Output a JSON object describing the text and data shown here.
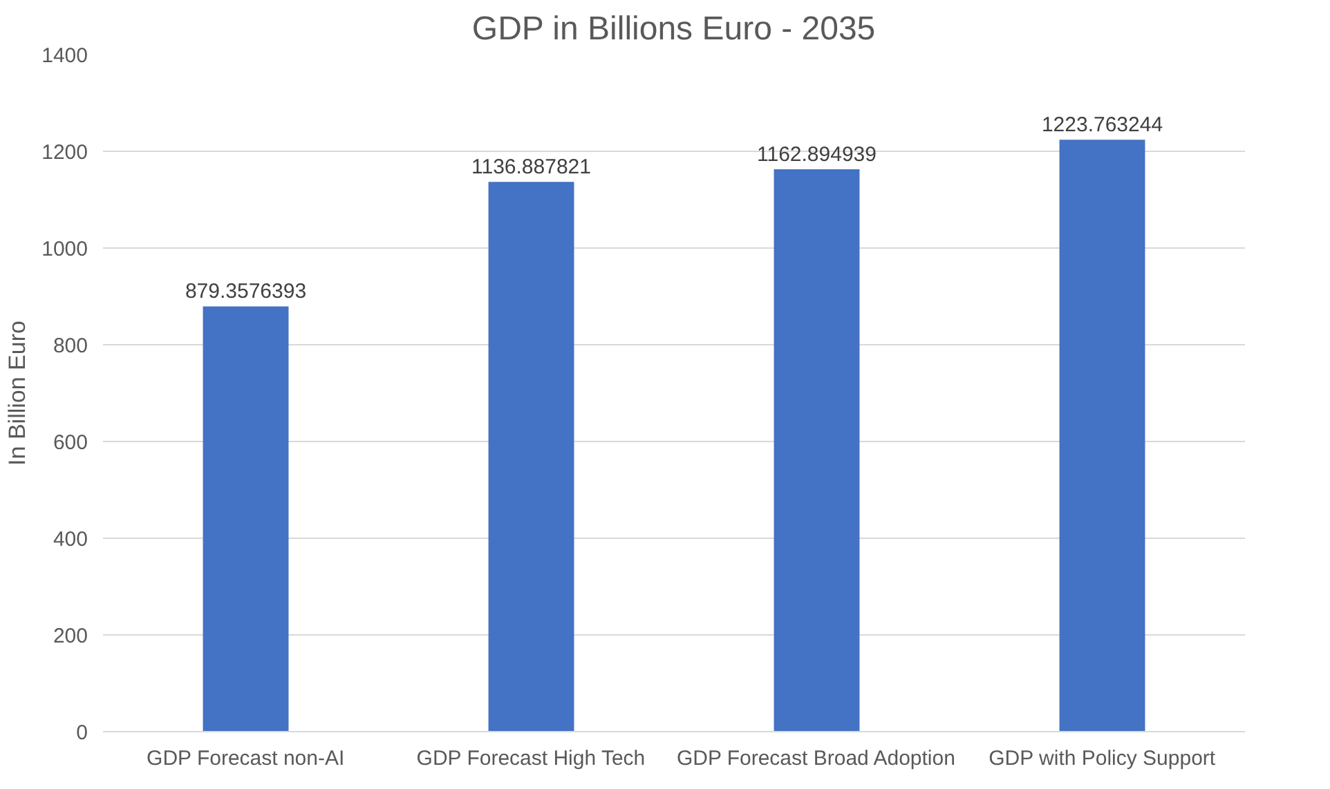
{
  "chart_data": {
    "type": "bar",
    "title": "GDP in Billions Euro - 2035",
    "ylabel": "In Billion Euro",
    "categories": [
      "GDP Forecast non-AI",
      "GDP Forecast High Tech",
      "GDP Forecast Broad Adoption",
      "GDP with Policy Support"
    ],
    "values": [
      879.3576393,
      1136.887821,
      1162.894939,
      1223.763244
    ],
    "color": "#4472c4",
    "ylim": [
      0,
      1400
    ],
    "yticks": [
      0,
      200,
      400,
      600,
      800,
      1000,
      1200,
      1400
    ],
    "grid": "y",
    "data_labels": true
  }
}
